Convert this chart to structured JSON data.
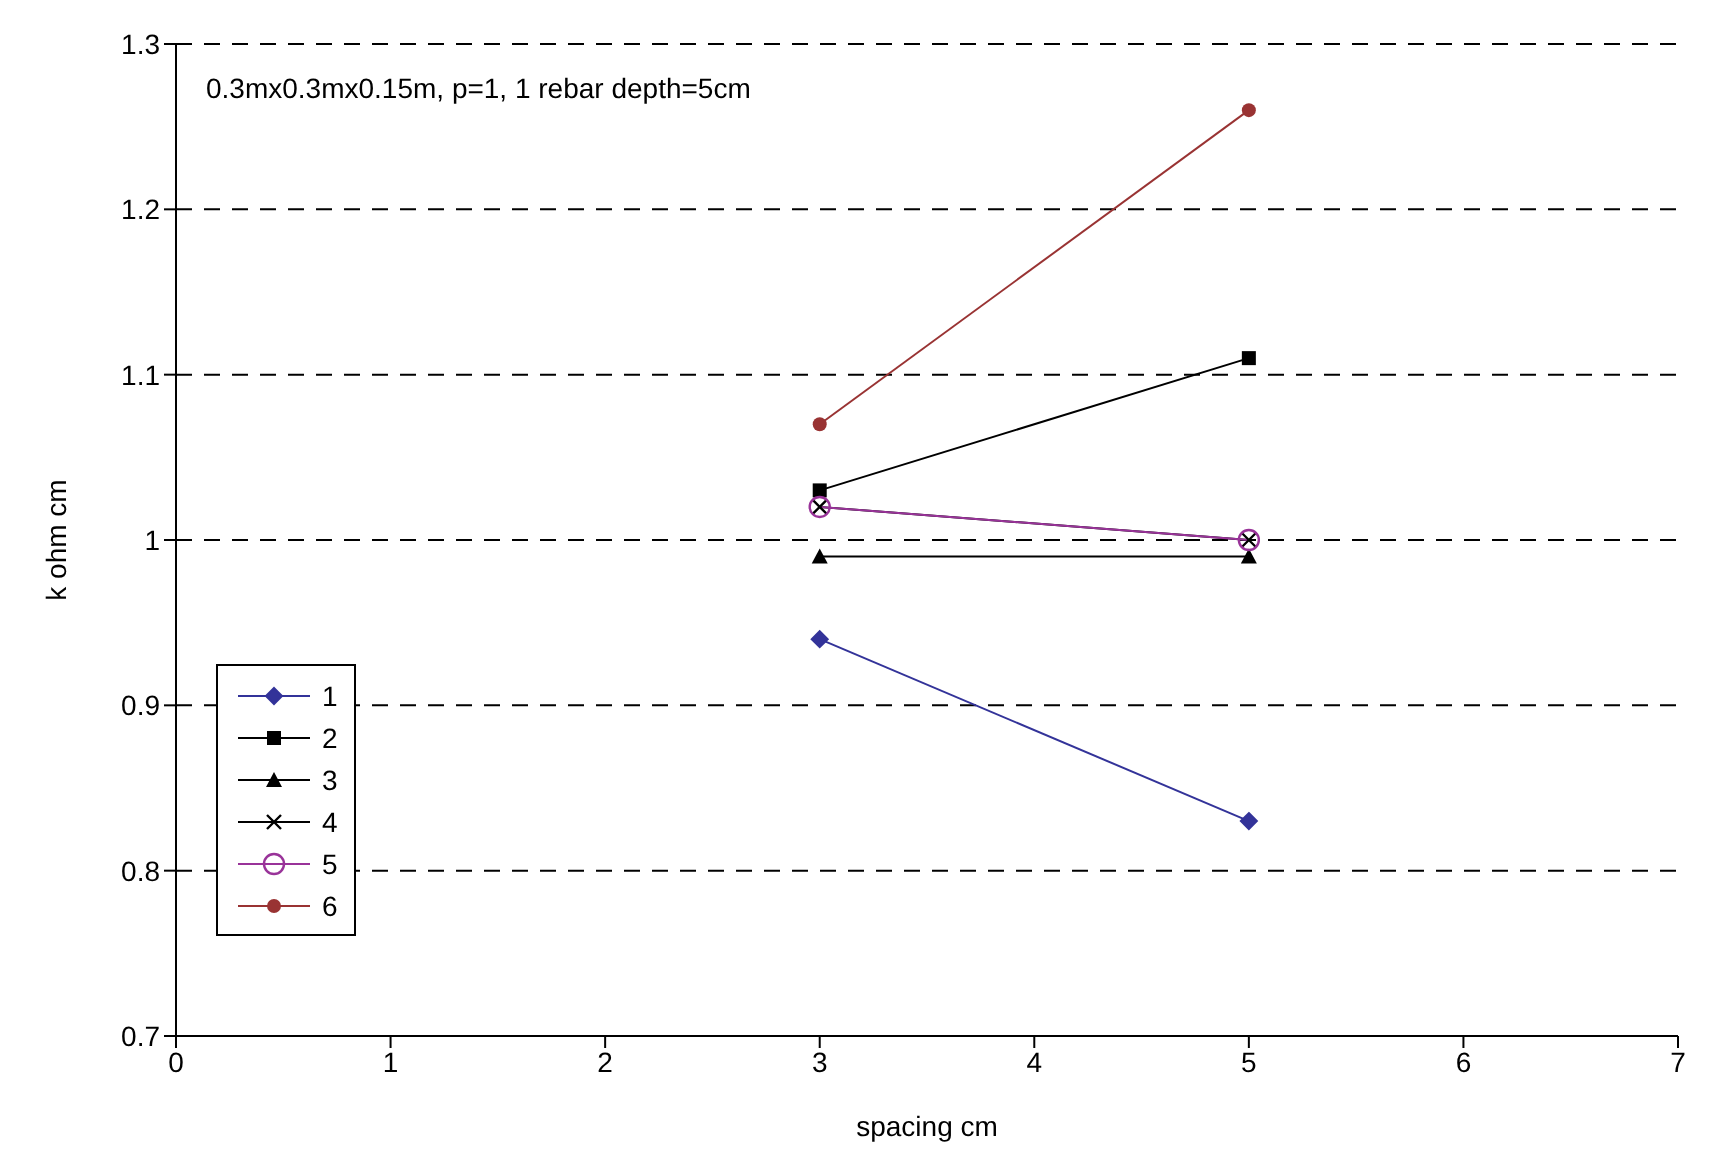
{
  "chart_data": {
    "type": "line",
    "xlabel": "spacing cm",
    "ylabel": "k ohm cm",
    "annotations": [
      "0.3mx0.3mx0.15m, p=1, 1 rebar depth=5cm"
    ],
    "x": [
      3,
      5
    ],
    "xlim": [
      0,
      7
    ],
    "xticks": [
      0,
      1,
      2,
      3,
      4,
      5,
      6,
      7
    ],
    "ylim": [
      0.7,
      1.3
    ],
    "yticks": [
      0.7,
      0.8,
      0.9,
      1,
      1.1,
      1.2,
      1.3
    ],
    "grid": "y",
    "legend": "bottom left",
    "line_style": "solid",
    "series": [
      {
        "name": "1",
        "color": "#333399",
        "marker": "diamond",
        "values": [
          0.94,
          0.83
        ]
      },
      {
        "name": "2",
        "color": "#000000",
        "marker": "square",
        "values": [
          1.03,
          1.11
        ]
      },
      {
        "name": "3",
        "color": "#000000",
        "marker": "triangle",
        "values": [
          0.99,
          0.99
        ]
      },
      {
        "name": "4",
        "color": "#000000",
        "marker": "cross",
        "values": [
          1.02,
          1.0
        ]
      },
      {
        "name": "5",
        "color": "#993399",
        "marker": "circle-open",
        "values": [
          1.02,
          1.0
        ]
      },
      {
        "name": "6",
        "color": "#993333",
        "marker": "circle",
        "values": [
          1.07,
          1.26
        ]
      }
    ]
  }
}
